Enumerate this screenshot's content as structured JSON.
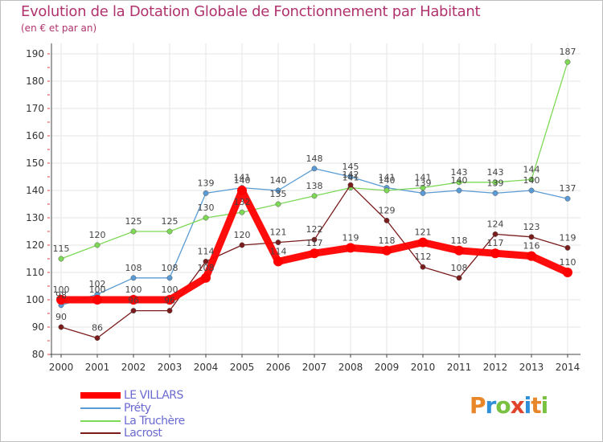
{
  "header": {
    "title": "Evolution de la Dotation Globale de Fonctionnement par Habitant",
    "subtitle": "(en € et par an)"
  },
  "logo": {
    "text": "Proxiti"
  },
  "chart_data": {
    "type": "line",
    "categories": [
      "2000",
      "2001",
      "2002",
      "2003",
      "2004",
      "2005",
      "2006",
      "2007",
      "2008",
      "2009",
      "2010",
      "2011",
      "2012",
      "2013",
      "2014"
    ],
    "ylim": [
      80,
      190
    ],
    "yticks": [
      80,
      90,
      100,
      110,
      120,
      130,
      140,
      150,
      160,
      170,
      180,
      190
    ],
    "grid": true,
    "legend_position": "bottom-left",
    "series": [
      {
        "name": "LE VILLARS",
        "color": "#ff0000",
        "values": [
          100,
          100,
          100,
          100,
          108,
          140,
          114,
          117,
          119,
          118,
          121,
          118,
          117,
          116,
          110
        ],
        "labels": [
          "100",
          "100",
          "100",
          "100",
          "108",
          "140",
          "114",
          "117",
          "119",
          "118",
          "121",
          "118",
          "117",
          "116",
          "110"
        ]
      },
      {
        "name": "Préty",
        "color": "#5a9bd5",
        "values": [
          98,
          102,
          108,
          108,
          139,
          141,
          140,
          148,
          145,
          141,
          139,
          140,
          139,
          140,
          137
        ],
        "labels": [
          "98",
          "102",
          "108",
          "108",
          "139",
          "141",
          "140",
          "148",
          "145",
          "141",
          "139",
          "140",
          "139",
          "140",
          "137"
        ]
      },
      {
        "name": "La Truchère",
        "color": "#7ed957",
        "values": [
          115,
          120,
          125,
          125,
          130,
          132,
          135,
          138,
          141,
          140,
          141,
          143,
          143,
          144,
          187
        ],
        "labels": [
          "115",
          "120",
          "125",
          "125",
          "130",
          "132",
          "135",
          "138",
          "141",
          "140",
          "141",
          "143",
          "143",
          "144",
          "187"
        ]
      },
      {
        "name": "Lacrost",
        "color": "#7b1c1c",
        "values": [
          90,
          86,
          96,
          96,
          114,
          120,
          121,
          122,
          142,
          129,
          112,
          108,
          124,
          123,
          119
        ],
        "labels": [
          "90",
          "86",
          "96",
          "96",
          "114",
          "120",
          "121",
          "122",
          "142",
          "129",
          "112",
          "108",
          "124",
          "123",
          "119"
        ]
      }
    ]
  }
}
